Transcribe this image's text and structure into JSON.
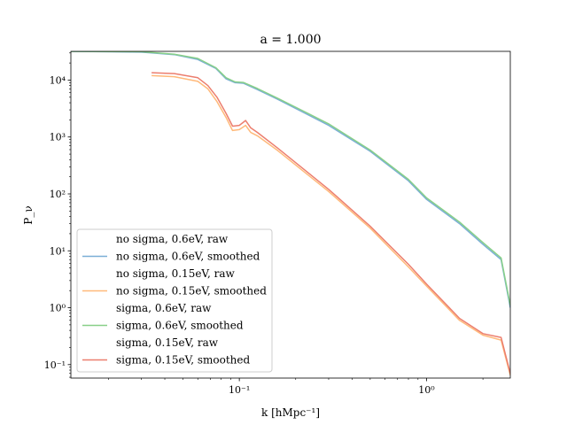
{
  "chart_data": {
    "type": "line",
    "title": "a = 1.000",
    "xlabel": "k [hMpc⁻¹]",
    "ylabel": "P_ν",
    "xscale": "log",
    "yscale": "log",
    "xlim": [
      0.0126,
      2.8
    ],
    "ylim": [
      0.058,
      32000
    ],
    "grid": false,
    "legend_position": "lower-left",
    "x_ticks": [
      {
        "value": 0.1,
        "label": "10⁻¹"
      },
      {
        "value": 1.0,
        "label": "10⁰"
      }
    ],
    "y_ticks": [
      {
        "value": 0.1,
        "label": "10⁻¹"
      },
      {
        "value": 1,
        "label": "10⁰"
      },
      {
        "value": 10,
        "label": "10¹"
      },
      {
        "value": 100,
        "label": "10²"
      },
      {
        "value": 1000,
        "label": "10³"
      },
      {
        "value": 10000,
        "label": "10⁴"
      }
    ],
    "series": [
      {
        "name": "no sigma, 0.6eV, raw",
        "color": "",
        "x": [],
        "y": []
      },
      {
        "name": "no sigma, 0.6eV, smoothed",
        "color": "#7aaed6",
        "x": [
          0.0126,
          0.03,
          0.045,
          0.06,
          0.075,
          0.085,
          0.095,
          0.105,
          0.125,
          0.16,
          0.22,
          0.3,
          0.5,
          0.8,
          1.0,
          1.5,
          2.0,
          2.5,
          2.8
        ],
        "y": [
          32000,
          31000,
          28000,
          23000,
          16000,
          10500,
          9000,
          8800,
          6800,
          4600,
          2700,
          1600,
          560,
          170,
          80,
          30,
          13,
          7,
          1.0
        ]
      },
      {
        "name": "no sigma, 0.15eV, raw",
        "color": "",
        "x": [],
        "y": []
      },
      {
        "name": "no sigma, 0.15eV, smoothed",
        "color": "#ffb97a",
        "x": [
          0.034,
          0.045,
          0.06,
          0.068,
          0.076,
          0.085,
          0.092,
          0.1,
          0.108,
          0.115,
          0.125,
          0.16,
          0.22,
          0.3,
          0.5,
          0.8,
          1.0,
          1.5,
          2.0,
          2.5,
          2.8
        ],
        "y": [
          12000,
          11500,
          9500,
          7000,
          4200,
          2200,
          1300,
          1350,
          1600,
          1200,
          1050,
          580,
          250,
          110,
          25,
          5.2,
          2.4,
          0.6,
          0.33,
          0.27,
          0.065
        ]
      },
      {
        "name": "sigma, 0.6eV, raw",
        "color": "",
        "x": [],
        "y": []
      },
      {
        "name": "sigma, 0.6eV, smoothed",
        "color": "#88d088",
        "x": [
          0.0126,
          0.03,
          0.045,
          0.06,
          0.075,
          0.085,
          0.095,
          0.105,
          0.125,
          0.16,
          0.22,
          0.3,
          0.5,
          0.8,
          1.0,
          1.5,
          2.0,
          2.5,
          2.8
        ],
        "y": [
          32000,
          31500,
          28500,
          24000,
          16500,
          11000,
          9300,
          9100,
          7100,
          4800,
          2850,
          1700,
          590,
          180,
          85,
          32,
          14,
          7.5,
          1.1
        ]
      },
      {
        "name": "sigma, 0.15eV, raw",
        "color": "",
        "x": [],
        "y": []
      },
      {
        "name": "sigma, 0.15eV, smoothed",
        "color": "#ec7e6e",
        "x": [
          0.034,
          0.045,
          0.06,
          0.068,
          0.076,
          0.085,
          0.092,
          0.1,
          0.108,
          0.115,
          0.125,
          0.16,
          0.22,
          0.3,
          0.5,
          0.8,
          1.0,
          1.5,
          2.0,
          2.5,
          2.8
        ],
        "y": [
          13500,
          13000,
          11000,
          8000,
          5000,
          2600,
          1550,
          1600,
          1950,
          1450,
          1200,
          640,
          275,
          120,
          27,
          5.8,
          2.6,
          0.65,
          0.35,
          0.3,
          0.07
        ]
      }
    ]
  }
}
